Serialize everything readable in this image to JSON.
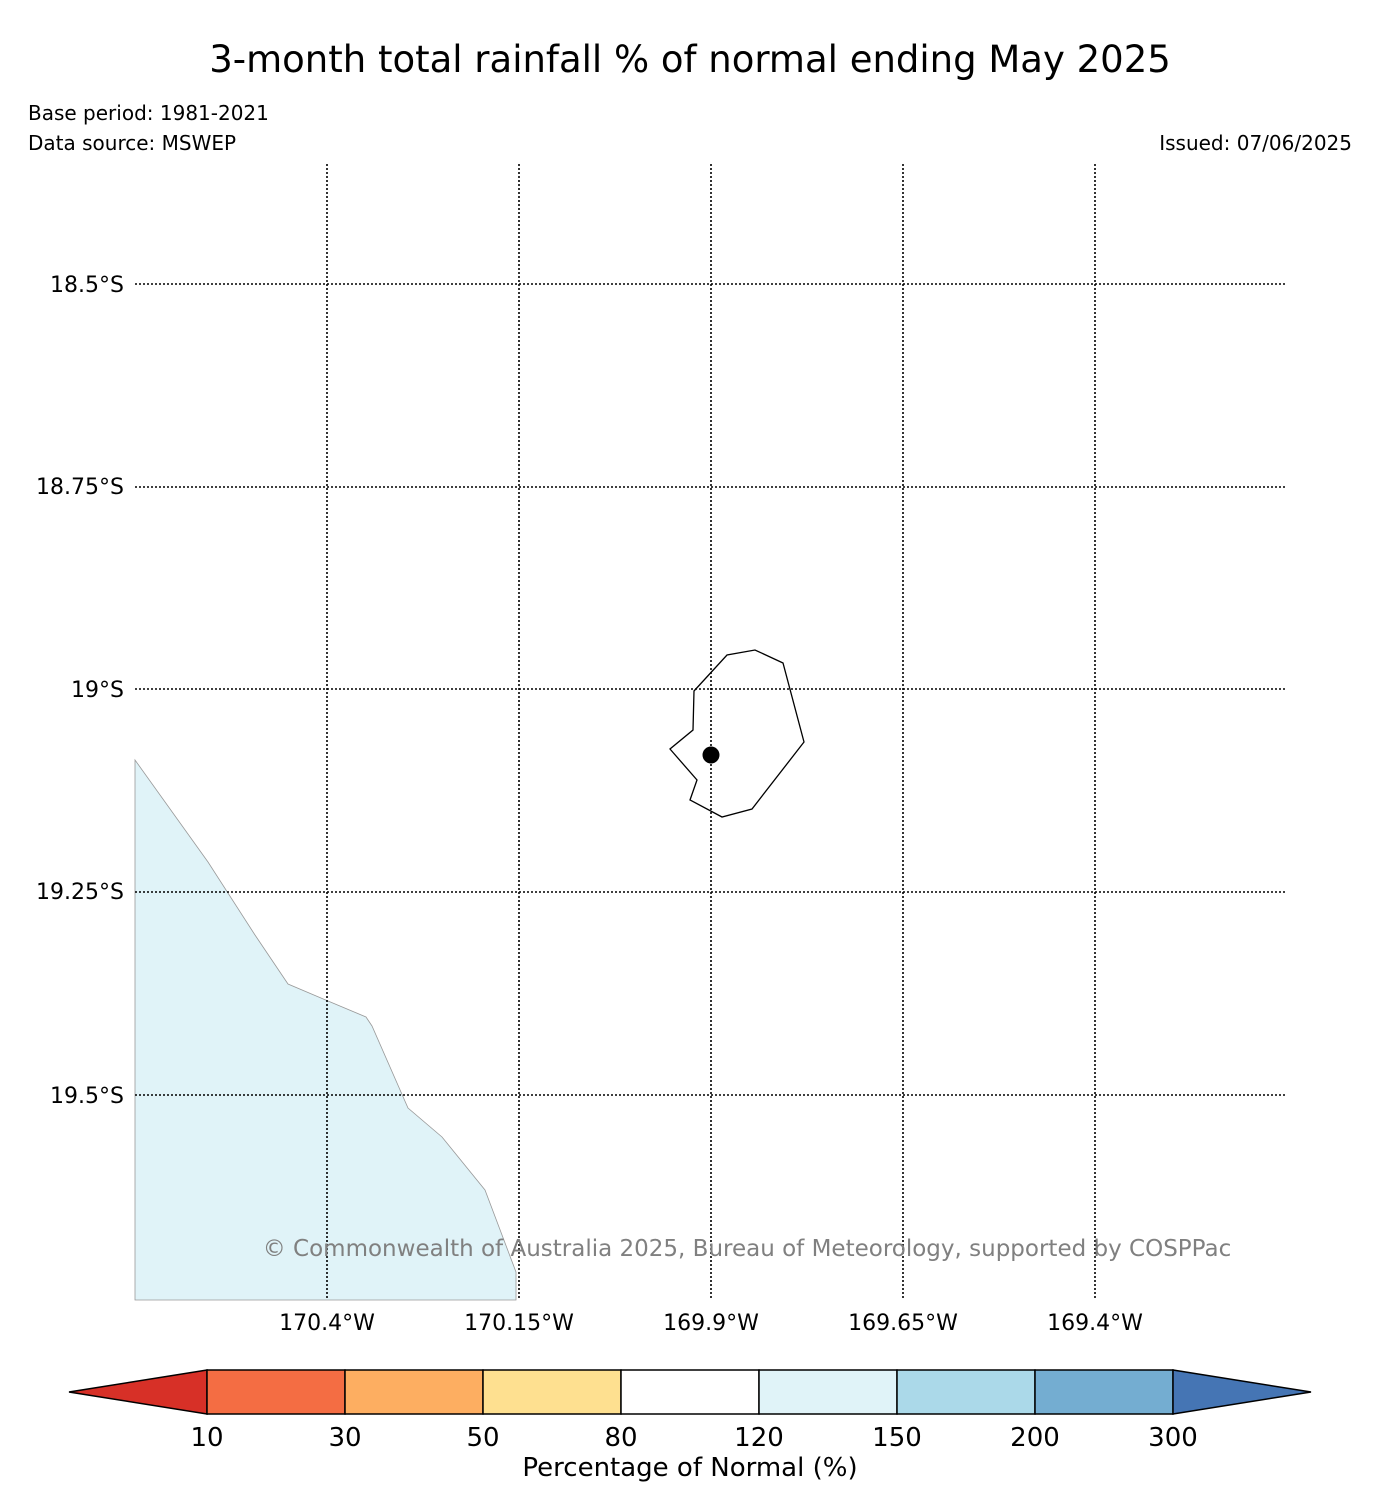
{
  "title": "3-month total rainfall % of normal ending May 2025",
  "base_period": "Base period: 1981-2021",
  "data_source": "Data source: MSWEP",
  "issued": "Issued: 07/06/2025",
  "copyright": "© Commonwealth of Australia 2025, Bureau of Meteorology, supported by COSPPac",
  "map": {
    "lat_labels": [
      "18.5°S",
      "18.75°S",
      "19°S",
      "19.25°S",
      "19.5°S"
    ],
    "lon_labels": [
      "170.4°W",
      "170.15°W",
      "169.9°W",
      "169.65°W",
      "169.4°W"
    ],
    "land_fill_color": "#e0f3f8",
    "marker_color": "#000000"
  },
  "colorbar": {
    "title": "Percentage of Normal (%)",
    "ticks": [
      "10",
      "30",
      "50",
      "80",
      "120",
      "150",
      "200",
      "300"
    ],
    "colors": [
      "#d73027",
      "#f46d43",
      "#fdae61",
      "#fee090",
      "#ffffff",
      "#e0f3f8",
      "#abd9e9",
      "#74add1",
      "#4575b4"
    ]
  }
}
